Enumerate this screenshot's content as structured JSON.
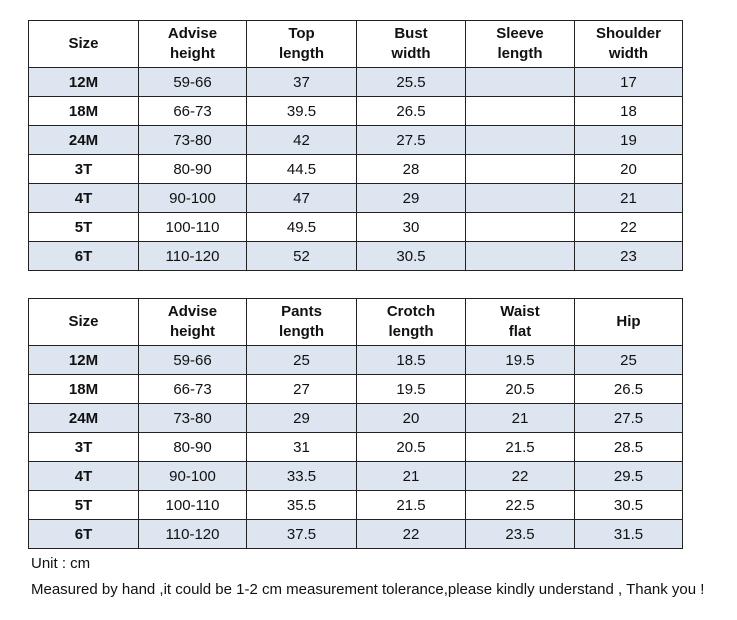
{
  "tables": [
    {
      "headers": [
        [
          "Size"
        ],
        [
          "Advise",
          "height"
        ],
        [
          "Top",
          "length"
        ],
        [
          "Bust",
          "width"
        ],
        [
          "Sleeve",
          "length"
        ],
        [
          "Shoulder",
          "width"
        ]
      ],
      "rows": [
        [
          "12M",
          "59-66",
          "37",
          "25.5",
          null,
          "17"
        ],
        [
          "18M",
          "66-73",
          "39.5",
          "26.5",
          null,
          "18"
        ],
        [
          "24M",
          "73-80",
          "42",
          "27.5",
          null,
          "19"
        ],
        [
          "3T",
          "80-90",
          "44.5",
          "28",
          null,
          "20"
        ],
        [
          "4T",
          "90-100",
          "47",
          "29",
          null,
          "21"
        ],
        [
          "5T",
          "100-110",
          "49.5",
          "30",
          null,
          "22"
        ],
        [
          "6T",
          "110-120",
          "52",
          "30.5",
          null,
          "23"
        ]
      ]
    },
    {
      "headers": [
        [
          "Size"
        ],
        [
          "Advise",
          "height"
        ],
        [
          "Pants",
          "length"
        ],
        [
          "Crotch",
          "length"
        ],
        [
          "Waist",
          "flat"
        ],
        [
          "Hip"
        ]
      ],
      "rows": [
        [
          "12M",
          "59-66",
          "25",
          "18.5",
          "19.5",
          "25"
        ],
        [
          "18M",
          "66-73",
          "27",
          "19.5",
          "20.5",
          "26.5"
        ],
        [
          "24M",
          "73-80",
          "29",
          "20",
          "21",
          "27.5"
        ],
        [
          "3T",
          "80-90",
          "31",
          "20.5",
          "21.5",
          "28.5"
        ],
        [
          "4T",
          "90-100",
          "33.5",
          "21",
          "22",
          "29.5"
        ],
        [
          "5T",
          "100-110",
          "35.5",
          "21.5",
          "22.5",
          "30.5"
        ],
        [
          "6T",
          "110-120",
          "37.5",
          "22",
          "23.5",
          "31.5"
        ]
      ]
    }
  ],
  "notes": [
    "Unit : cm",
    "Measured by hand ,it could be 1-2 cm measurement tolerance,please kindly understand , Thank you !"
  ]
}
